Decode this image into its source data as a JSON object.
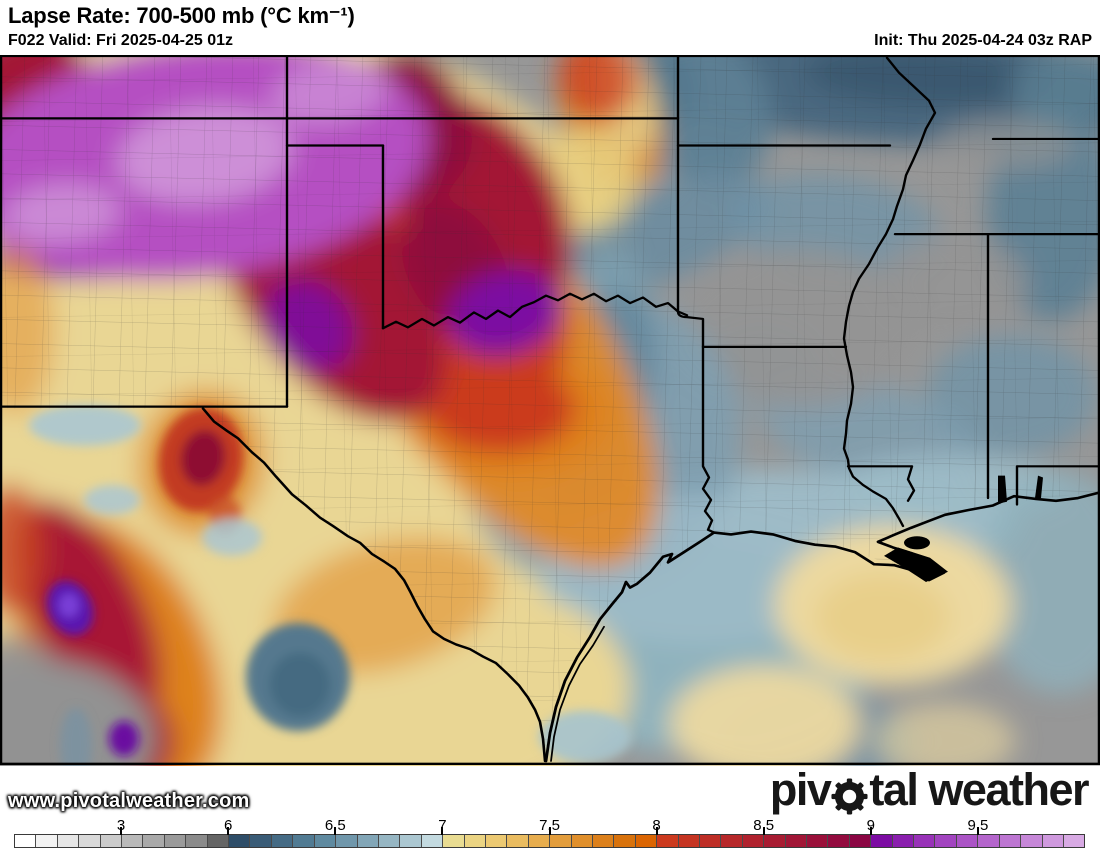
{
  "header": {
    "title": "Lapse Rate: 700-500 mb (°C km⁻¹)",
    "valid": "F022 Valid: Fri 2025-04-25 01z",
    "init": "Init: Thu 2025-04-24 03z RAP"
  },
  "map": {
    "watermark": "www.pivotalweather.com",
    "logo": {
      "prefix": "piv",
      "suffix": "tal weather",
      "gear_icon": "gear-icon"
    },
    "base_color": "#979797",
    "field_blobs_soft": [
      [
        240,
        330,
        400,
        310,
        0,
        "#e9d694",
        1
      ],
      [
        260,
        660,
        380,
        260,
        0,
        "#e9d694",
        1
      ],
      [
        900,
        88,
        250,
        62,
        3,
        "#4a687f",
        1
      ],
      [
        925,
        78,
        120,
        32,
        3,
        "#3a5870",
        1
      ],
      [
        705,
        115,
        65,
        85,
        -15,
        "#5d8095",
        0.95
      ],
      [
        655,
        85,
        35,
        55,
        -15,
        "#50758c",
        0.8
      ],
      [
        662,
        248,
        115,
        48,
        -25,
        "#6b8ca0",
        0.9
      ],
      [
        836,
        240,
        105,
        55,
        8,
        "#6f93a8",
        0.75
      ],
      [
        1052,
        225,
        65,
        115,
        0,
        "#5b7f93",
        0.9
      ],
      [
        1070,
        90,
        60,
        40,
        0,
        "#5b7f93",
        0.8
      ],
      [
        762,
        388,
        58,
        48,
        0,
        "#7d9fb0",
        0.6
      ],
      [
        1012,
        420,
        85,
        65,
        0,
        "#6f93a8",
        0.8
      ],
      [
        872,
        462,
        115,
        55,
        18,
        "#7d9fb0",
        0.8
      ],
      [
        595,
        368,
        48,
        105,
        14,
        "#7d9fb0",
        0.85
      ],
      [
        795,
        348,
        125,
        85,
        0,
        "#949494",
        0.9
      ],
      [
        952,
        302,
        75,
        55,
        0,
        "#949494",
        0.85
      ],
      [
        1005,
        150,
        70,
        28,
        0,
        "#949494",
        0.7
      ],
      [
        805,
        555,
        215,
        55,
        2,
        "#9dbcc8",
        0.95
      ],
      [
        952,
        518,
        115,
        35,
        0,
        "#9dbcc8",
        0.9
      ],
      [
        1060,
        620,
        80,
        120,
        0,
        "#8fb2bd",
        0.8
      ],
      [
        700,
        690,
        180,
        115,
        0,
        "#8fb2bd",
        1
      ],
      [
        820,
        792,
        95,
        55,
        0,
        "#6f93a8",
        0.7
      ],
      [
        600,
        470,
        140,
        160,
        10,
        "#7e9fb0",
        0.9
      ],
      [
        595,
        425,
        55,
        120,
        15,
        "#62869b",
        0.85
      ],
      [
        700,
        608,
        160,
        80,
        0,
        "#9dbcc8",
        0.8
      ],
      [
        893,
        645,
        118,
        85,
        0,
        "#ecd9a0",
        1
      ],
      [
        882,
        658,
        68,
        48,
        0,
        "#e8cf8a",
        1
      ],
      [
        765,
        772,
        95,
        62,
        0,
        "#ecd9a0",
        0.95
      ],
      [
        945,
        790,
        70,
        40,
        0,
        "#ecd9a0",
        0.6
      ],
      [
        480,
        735,
        150,
        110,
        0,
        "#e9d694",
        1
      ],
      [
        488,
        372,
        115,
        265,
        -32,
        "#e08a28",
        0.95
      ],
      [
        610,
        118,
        48,
        85,
        -18,
        "#e08a28",
        0.9
      ],
      [
        628,
        100,
        26,
        60,
        -12,
        "#e6d28e",
        0.85
      ],
      [
        586,
        188,
        52,
        55,
        0,
        "#e8cf80",
        0.9
      ],
      [
        505,
        438,
        105,
        72,
        0,
        "#de7f1c",
        0.9
      ],
      [
        500,
        434,
        75,
        48,
        0,
        "#cb3a1e",
        1
      ],
      [
        428,
        252,
        105,
        200,
        -33,
        "#cb3a1e",
        1
      ],
      [
        598,
        80,
        40,
        45,
        -20,
        "#cb3a1e",
        0.75
      ],
      [
        330,
        302,
        88,
        165,
        -33,
        "#a31335",
        1
      ],
      [
        482,
        215,
        78,
        125,
        -28,
        "#a31335",
        1
      ],
      [
        30,
        108,
        70,
        78,
        0,
        "#a31335",
        1
      ],
      [
        205,
        112,
        48,
        38,
        0,
        "#a31335",
        0.9
      ],
      [
        412,
        128,
        58,
        78,
        -18,
        "#8c0a3e",
        1
      ],
      [
        455,
        282,
        48,
        75,
        -25,
        "#8c0a3e",
        0.9
      ],
      [
        505,
        332,
        58,
        44,
        -18,
        "#7c10a2",
        1
      ],
      [
        175,
        252,
        190,
        38,
        -7,
        "#8a14a8",
        1
      ],
      [
        308,
        345,
        42,
        52,
        -30,
        "#7c10a2",
        0.9
      ],
      [
        195,
        168,
        235,
        125,
        -8,
        "#b550c2",
        1
      ],
      [
        205,
        162,
        88,
        52,
        -8,
        "#cd8fd7",
        1
      ],
      [
        62,
        225,
        58,
        32,
        -5,
        "#cd8fd7",
        0.9
      ],
      [
        330,
        95,
        60,
        35,
        -10,
        "#cd8fd7",
        0.8
      ],
      [
        202,
        492,
        62,
        78,
        8,
        "#dd8a24",
        0.85
      ],
      [
        385,
        645,
        115,
        68,
        -18,
        "#e2a047",
        0.8
      ],
      [
        118,
        702,
        92,
        158,
        -22,
        "#dd7d18",
        0.95
      ],
      [
        88,
        652,
        56,
        128,
        -24,
        "#a81535",
        1
      ],
      [
        128,
        788,
        46,
        55,
        -10,
        "#a31335",
        1
      ],
      [
        38,
        788,
        115,
        85,
        0,
        "#929292",
        1
      ],
      [
        8,
        732,
        55,
        55,
        0,
        "#929292",
        0.9
      ],
      [
        15,
        350,
        40,
        90,
        0,
        "#e2a047",
        0.7
      ],
      [
        10,
        585,
        35,
        70,
        0,
        "#c8431f",
        0.8
      ]
    ],
    "field_blobs_detail": [
      [
        201,
        489,
        42,
        56,
        8,
        "#c23b20",
        1
      ],
      [
        203,
        487,
        22,
        30,
        8,
        "#8e1030",
        1
      ],
      [
        225,
        548,
        16,
        20,
        0,
        "#c8522a",
        0.8
      ],
      [
        70,
        648,
        22,
        30,
        -20,
        "#5a18b0",
        1
      ],
      [
        69,
        645,
        10,
        13,
        0,
        "#7a3fd8",
        1
      ],
      [
        124,
        788,
        15,
        19,
        0,
        "#6a10a0",
        1
      ],
      [
        298,
        722,
        52,
        58,
        0,
        "#54788e",
        1
      ],
      [
        300,
        730,
        30,
        34,
        0,
        "#44687f",
        0.9
      ],
      [
        85,
        452,
        56,
        22,
        0,
        "#aac7d1",
        0.9
      ],
      [
        112,
        532,
        28,
        16,
        0,
        "#aac7d1",
        0.85
      ],
      [
        232,
        572,
        30,
        20,
        0,
        "#aac7d1",
        0.85
      ],
      [
        585,
        786,
        46,
        28,
        0,
        "#a5c3ce",
        0.9
      ],
      [
        76,
        795,
        16,
        40,
        0,
        "#6f93a8",
        0.6
      ]
    ]
  },
  "colorbar": {
    "labels": [
      {
        "text": "3",
        "boundary": 5
      },
      {
        "text": "6",
        "boundary": 10
      },
      {
        "text": "6.5",
        "boundary": 15
      },
      {
        "text": "7",
        "boundary": 20
      },
      {
        "text": "7.5",
        "boundary": 25
      },
      {
        "text": "8",
        "boundary": 30
      },
      {
        "text": "8.5",
        "boundary": 35
      },
      {
        "text": "9",
        "boundary": 40
      },
      {
        "text": "9.5",
        "boundary": 45
      }
    ],
    "cell_colors": [
      "#ffffff",
      "#f2f2f2",
      "#e6e6e6",
      "#d9d9d9",
      "#cbcbcb",
      "#b9b9b9",
      "#a9a9a9",
      "#9a9a9a",
      "#8b8b8b",
      "#656565",
      "#2e4d68",
      "#3a5c77",
      "#456b85",
      "#517b93",
      "#5f8aa0",
      "#7097ab",
      "#82a6b7",
      "#96b6c3",
      "#abc7d1",
      "#c3dae0",
      "#e9dc92",
      "#ebd483",
      "#ecc972",
      "#eabc60",
      "#e7ad4e",
      "#e39d3c",
      "#e08f2b",
      "#dc801b",
      "#d8720c",
      "#db6502",
      "#cc3a1e",
      "#c53422",
      "#be2e26",
      "#b7282a",
      "#b0222e",
      "#a81c32",
      "#a11636",
      "#9a103a",
      "#930b3f",
      "#8b0643",
      "#7c0ca3",
      "#8a1fae",
      "#9832b8",
      "#a244c0",
      "#ab54c6",
      "#b465cc",
      "#bd76d2",
      "#c687d8",
      "#cf99de",
      "#d8aae4"
    ]
  }
}
